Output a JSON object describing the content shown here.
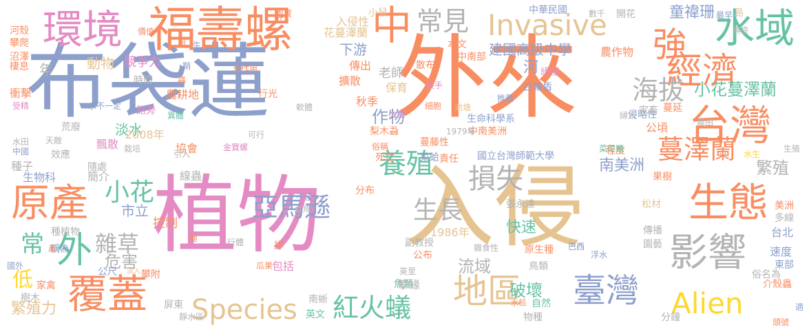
{
  "colors": {
    "blue": "#8d9fcb",
    "orange": "#f98d62",
    "pink": "#e48bc3",
    "tan": "#e6c492",
    "green": "#66c2a5",
    "gray": "#b3b3b3",
    "lime": "#a7d853",
    "yellow": "#fed82f"
  },
  "words": [
    "布袋蓮",
    "外來",
    "入侵",
    "植物",
    "福壽螺",
    "環境",
    "水域",
    "台灣",
    "經濟",
    "Invasive",
    "中",
    "強",
    "常見",
    "原產",
    "生態",
    "影響",
    "臺灣",
    "Alien",
    "地區",
    "Species",
    "覆蓋",
    "雜草",
    "外",
    "小花",
    "養殖",
    "損失",
    "亞馬遜",
    "紅火蟻",
    "海拔",
    "蔓澤蘭",
    "小花蔓澤蘭",
    "生長",
    "南美洲",
    "危害",
    "常",
    "低",
    "繁殖",
    "下游",
    "老師",
    "動物",
    "年",
    "建國高級中學",
    "中華民國",
    "童禕珊",
    "農作物",
    "河",
    "綠癌",
    "白輪盾",
    "保育",
    "傳出",
    "擴散",
    "殺手",
    "作物",
    "秋季",
    "淡水",
    "2008年",
    "荒廢",
    "飄散",
    "市立",
    "控制",
    "流域",
    "快速",
    "1986年",
    "副教授",
    "公布",
    "原生種",
    "破壞",
    "繁殖力",
    "家禽",
    "攀附",
    "公尺",
    "包括",
    "魚類",
    "屏東",
    "南蜥",
    "英文",
    "物種",
    "自然",
    "水稻",
    "分鐘",
    "介殼蟲",
    "美洲",
    "多線",
    "台北",
    "速度",
    "東部",
    "俗名為",
    "園藝",
    "傳播",
    "松材",
    "果樹",
    "國立台灣師範大學",
    "責任",
    "菜蛤",
    "梨木蝨",
    "蔓藤性",
    "中南美洲",
    "生命科學系",
    "侵略性",
    "程度",
    "家畜",
    "蔓延",
    "公頃",
    "協會",
    "死亡",
    "種子",
    "效應",
    "隨處",
    "簡介",
    "生物科",
    "線蟲",
    "分布",
    "張永達",
    "英里",
    "攀緣",
    "流入",
    "鳥類",
    "巴西",
    "浮水",
    "水生",
    "菜菜類",
    "農田",
    "婦人",
    "生殖",
    "入侵性",
    "花蔓澤蘭",
    "散布",
    "本文",
    "中南部",
    "推薦",
    "池塘",
    "大量",
    "1979年",
    "俗稱",
    "細胞",
    "種植物",
    "稱為",
    "國外",
    "樹木",
    "靜水區",
    "河殼",
    "攀爬",
    "沼澤",
    "棲息",
    "競爭力",
    "時間",
    "衝擊",
    "受精",
    "農耕地",
    "路旁",
    "水不一定",
    "中國",
    "天敵",
    "水田",
    "栽培",
    "引入",
    "金寶螺",
    "軟體",
    "異體",
    "行光",
    "最早",
    "島",
    "數千",
    "開花",
    "無性",
    "合作用",
    "肉質",
    "價值",
    "可行",
    "小鼠",
    "卵",
    "食用",
    "不佳",
    "行體",
    "雜食性",
    "頭號",
    "詳",
    "瓜果",
    "巴西",
    "適",
    "產",
    "極",
    "蟲",
    "鞘",
    "生",
    "旺"
  ]
}
